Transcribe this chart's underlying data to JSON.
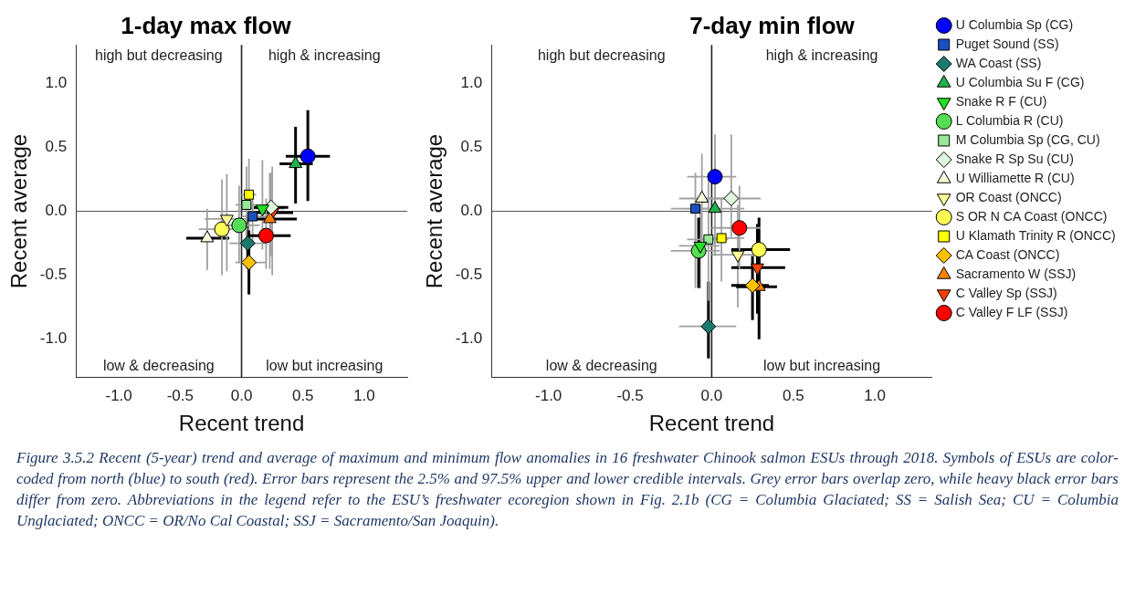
{
  "chart_data": [
    {
      "type": "scatter",
      "title": "1-day max flow",
      "xlabel": "Recent trend",
      "ylabel": "Recent average",
      "xlim": [
        -1.35,
        1.35
      ],
      "ylim": [
        -1.3,
        1.3
      ],
      "xticks": [
        {
          "value": -1,
          "label": "-1.0"
        },
        {
          "value": -0.5,
          "label": "-0.5"
        },
        {
          "value": 0,
          "label": "0.0"
        },
        {
          "value": 0.5,
          "label": "0.5"
        },
        {
          "value": 1,
          "label": "1.0"
        }
      ],
      "yticks": [
        {
          "value": -1,
          "label": "-1.0"
        },
        {
          "value": -0.5,
          "label": "-0.5"
        },
        {
          "value": 0,
          "label": "0.0"
        },
        {
          "value": 0.5,
          "label": "0.5"
        },
        {
          "value": 1,
          "label": "1.0"
        }
      ],
      "grid": false,
      "legend": false,
      "ref_lines": [
        {
          "axis": "x",
          "value": 0
        },
        {
          "axis": "y",
          "value": 0
        }
      ],
      "annotations": [
        "high but decreasing",
        "high & increasing",
        "low & decreasing",
        "low but increasing"
      ],
      "series": [
        {
          "color": "#0000ff",
          "marker": "circle",
          "x": [
            0.54
          ],
          "values": [
            0.43
          ],
          "xerrors": [
            [
              0.36,
              0.72
            ]
          ],
          "errors": [
            [
              0.08,
              0.79
            ]
          ]
        },
        {
          "color": "#1a4fc0",
          "marker": "square",
          "x": [
            0.09
          ],
          "values": [
            -0.04
          ],
          "xerrors": [
            [
              0.0,
              0.2
            ]
          ],
          "errors": [
            [
              -0.25,
              0.15
            ]
          ]
        },
        {
          "color": "#1a7a6e",
          "marker": "diamond",
          "x": [
            0.05
          ],
          "values": [
            -0.25
          ],
          "xerrors": [
            [
              -0.1,
              0.2
            ]
          ],
          "errors": [
            [
              -0.45,
              -0.05
            ]
          ]
        },
        {
          "color": "#22b14c",
          "marker": "triangle",
          "x": [
            0.44
          ],
          "values": [
            0.37
          ],
          "xerrors": [
            [
              0.31,
              0.58
            ]
          ],
          "errors": [
            [
              0.06,
              0.66
            ]
          ]
        },
        {
          "color": "#22e022",
          "marker": "triangle-down",
          "x": [
            0.17
          ],
          "values": [
            0.02
          ],
          "xerrors": [
            [
              0.0,
              0.35
            ]
          ],
          "errors": [
            [
              -0.3,
              0.4
            ]
          ]
        },
        {
          "color": "#55dd55",
          "marker": "circle",
          "x": [
            -0.02
          ],
          "values": [
            -0.11
          ],
          "xerrors": [
            [
              -0.2,
              0.15
            ]
          ],
          "errors": [
            [
              -0.4,
              0.2
            ]
          ]
        },
        {
          "color": "#99e699",
          "marker": "square",
          "x": [
            0.04
          ],
          "values": [
            0.05
          ],
          "xerrors": [
            [
              -0.05,
              0.12
            ]
          ],
          "errors": [
            [
              -0.3,
              0.35
            ]
          ]
        },
        {
          "color": "#ddf5dd",
          "marker": "diamond",
          "x": [
            0.24
          ],
          "values": [
            0.03
          ],
          "xerrors": [
            [
              0.1,
              0.38
            ]
          ],
          "errors": [
            [
              -0.35,
              0.3
            ]
          ]
        },
        {
          "color": "#fafadc",
          "marker": "triangle",
          "x": [
            -0.28
          ],
          "values": [
            -0.21
          ],
          "xerrors": [
            [
              -0.45,
              -0.1
            ]
          ],
          "errors": [
            [
              -0.46,
              0.02
            ]
          ]
        },
        {
          "color": "#ffff99",
          "marker": "triangle-down",
          "x": [
            -0.12
          ],
          "values": [
            -0.06
          ],
          "xerrors": [
            [
              -0.3,
              0.05
            ]
          ],
          "errors": [
            [
              -0.47,
              0.29
            ]
          ]
        },
        {
          "color": "#ffff55",
          "marker": "circle",
          "x": [
            -0.16
          ],
          "values": [
            -0.14
          ],
          "xerrors": [
            [
              -0.35,
              0.05
            ]
          ],
          "errors": [
            [
              -0.5,
              0.25
            ]
          ]
        },
        {
          "color": "#ffff00",
          "marker": "square",
          "x": [
            0.06
          ],
          "values": [
            0.13
          ],
          "xerrors": [
            [
              0.0,
              0.12
            ]
          ],
          "errors": [
            [
              -0.35,
              0.41
            ]
          ]
        },
        {
          "color": "#ffc000",
          "marker": "diamond",
          "x": [
            0.06
          ],
          "values": [
            -0.4
          ],
          "xerrors": [
            [
              -0.05,
              0.2
            ]
          ],
          "errors": [
            [
              -0.65,
              -0.15
            ]
          ]
        },
        {
          "color": "#ff8000",
          "marker": "triangle",
          "x": [
            0.23
          ],
          "values": [
            -0.06
          ],
          "xerrors": [
            [
              0.05,
              0.45
            ]
          ],
          "errors": [
            [
              -0.45,
              0.3
            ]
          ]
        },
        {
          "color": "#ff4000",
          "marker": "triangle-down",
          "x": [
            0.25
          ],
          "values": [
            -0.01
          ],
          "xerrors": [
            [
              0.12,
              0.42
            ]
          ],
          "errors": [
            [
              -0.5,
              0.35
            ]
          ]
        },
        {
          "color": "#ff0000",
          "marker": "circle",
          "x": [
            0.2
          ],
          "values": [
            -0.19
          ],
          "xerrors": [
            [
              0.05,
              0.4
            ]
          ],
          "errors": [
            [
              -0.45,
              0.1
            ]
          ]
        }
      ]
    },
    {
      "type": "scatter",
      "title": "7-day min flow",
      "xlabel": "Recent trend",
      "ylabel": "Recent average",
      "xlim": [
        -1.35,
        1.35
      ],
      "ylim": [
        -1.3,
        1.3
      ],
      "xticks": [
        {
          "value": -1,
          "label": "-1.0"
        },
        {
          "value": -0.5,
          "label": "-0.5"
        },
        {
          "value": 0,
          "label": "0.0"
        },
        {
          "value": 0.5,
          "label": "0.5"
        },
        {
          "value": 1,
          "label": "1.0"
        }
      ],
      "yticks": [
        {
          "value": -1,
          "label": "-1.0"
        },
        {
          "value": -0.5,
          "label": "-0.5"
        },
        {
          "value": 0,
          "label": "0.0"
        },
        {
          "value": 0.5,
          "label": "0.5"
        },
        {
          "value": 1,
          "label": "1.0"
        }
      ],
      "grid": false,
      "legend": "right",
      "ref_lines": [
        {
          "axis": "x",
          "value": 0
        },
        {
          "axis": "y",
          "value": 0
        }
      ],
      "annotations": [
        "high but decreasing",
        "high & increasing",
        "low & decreasing",
        "low but increasing",
        "Figure 3.5.2 Recent (5-year) trend and average of maximum and minimum flow anomalies in 16 freshwater Chinook salmon ESUs through 2018. Symbols of ESUs are color-coded from north (blue) to south (red). Error bars represent the 2.5% and 97.5% upper and lower credible intervals. Grey error bars overlap zero, while heavy black error bars differ from zero. Abbreviations in the legend refer to the ESU’s freshwater ecoregion shown in Fig. 2.1b (CG = Columbia Glaciated; SS = Salish Sea; CU = Columbia Unglaciated; ONCC = OR/No Cal Coastal; SSJ = Sacramento/San Joaquin)."
      ],
      "series": [
        {
          "name": "U Columbia Sp (CG)",
          "color": "#0000ff",
          "marker": "circle",
          "x": [
            0.02
          ],
          "values": [
            0.27
          ],
          "xerrors": [
            [
              -0.15,
              0.15
            ]
          ],
          "errors": [
            [
              0.0,
              0.6
            ]
          ]
        },
        {
          "name": "Puget Sound (SS)",
          "color": "#1a4fc0",
          "marker": "square",
          "x": [
            -0.1
          ],
          "values": [
            0.02
          ],
          "xerrors": [
            [
              -0.25,
              0.05
            ]
          ],
          "errors": [
            [
              -0.6,
              0.3
            ]
          ]
        },
        {
          "name": "WA Coast (SS)",
          "color": "#1a7a6e",
          "marker": "diamond",
          "x": [
            -0.02
          ],
          "values": [
            -0.9
          ],
          "xerrors": [
            [
              -0.2,
              0.15
            ]
          ],
          "errors": [
            [
              -1.15,
              -0.55
            ]
          ]
        },
        {
          "name": "U Columbia Su F (CG)",
          "color": "#22b14c",
          "marker": "triangle",
          "x": [
            0.02
          ],
          "values": [
            0.02
          ],
          "xerrors": [
            [
              -0.15,
              0.2
            ]
          ],
          "errors": [
            [
              -0.35,
              0.4
            ]
          ]
        },
        {
          "name": "Snake R F (CU)",
          "color": "#22e022",
          "marker": "triangle-down",
          "x": [
            -0.07
          ],
          "values": [
            -0.27
          ],
          "xerrors": [
            [
              -0.2,
              0.05
            ]
          ],
          "errors": [
            [
              -0.6,
              0.05
            ]
          ]
        },
        {
          "name": "L Columbia R (CU)",
          "color": "#55dd55",
          "marker": "circle",
          "x": [
            -0.08
          ],
          "values": [
            -0.31
          ],
          "xerrors": [
            [
              -0.25,
              0.05
            ]
          ],
          "errors": [
            [
              -0.6,
              -0.05
            ]
          ]
        },
        {
          "name": "M Columbia Sp (CG, CU)",
          "color": "#99e699",
          "marker": "square",
          "x": [
            -0.02
          ],
          "values": [
            -0.22
          ],
          "xerrors": [
            [
              -0.15,
              0.1
            ]
          ],
          "errors": [
            [
              -0.7,
              0.3
            ]
          ]
        },
        {
          "name": "Snake R Sp Su (CU)",
          "color": "#ddf5dd",
          "marker": "diamond",
          "x": [
            0.12
          ],
          "values": [
            0.1
          ],
          "xerrors": [
            [
              -0.05,
              0.3
            ]
          ],
          "errors": [
            [
              -0.2,
              0.6
            ]
          ]
        },
        {
          "name": "U Williamette R (CU)",
          "color": "#fafadc",
          "marker": "triangle",
          "x": [
            -0.06
          ],
          "values": [
            0.1
          ],
          "xerrors": [
            [
              -0.2,
              0.1
            ]
          ],
          "errors": [
            [
              -0.25,
              0.45
            ]
          ]
        },
        {
          "name": "OR Coast (ONCC)",
          "color": "#ffff99",
          "marker": "triangle-down",
          "x": [
            0.16
          ],
          "values": [
            -0.34
          ],
          "xerrors": [
            [
              0.0,
              0.3
            ]
          ],
          "errors": [
            [
              -0.75,
              0.05
            ]
          ]
        },
        {
          "name": "S OR N CA Coast (ONCC)",
          "color": "#ffff55",
          "marker": "circle",
          "x": [
            0.29
          ],
          "values": [
            -0.3
          ],
          "xerrors": [
            [
              0.12,
              0.48
            ]
          ],
          "errors": [
            [
              -0.55,
              -0.05
            ]
          ]
        },
        {
          "name": "U Klamath Trinity R (ONCC)",
          "color": "#ffff00",
          "marker": "square",
          "x": [
            0.06
          ],
          "values": [
            -0.21
          ],
          "xerrors": [
            [
              -0.05,
              0.2
            ]
          ],
          "errors": [
            [
              -0.55,
              0.1
            ]
          ]
        },
        {
          "name": "CA Coast (ONCC)",
          "color": "#ffc000",
          "marker": "diamond",
          "x": [
            0.25
          ],
          "values": [
            -0.58
          ],
          "xerrors": [
            [
              0.12,
              0.35
            ]
          ],
          "errors": [
            [
              -0.85,
              -0.35
            ]
          ]
        },
        {
          "name": "Sacramento W (SSJ)",
          "color": "#ff8000",
          "marker": "triangle",
          "x": [
            0.29
          ],
          "values": [
            -0.59
          ],
          "xerrors": [
            [
              0.15,
              0.4
            ]
          ],
          "errors": [
            [
              -1.0,
              -0.25
            ]
          ]
        },
        {
          "name": "C Valley Sp (SSJ)",
          "color": "#ff4000",
          "marker": "triangle-down",
          "x": [
            0.28
          ],
          "values": [
            -0.44
          ],
          "xerrors": [
            [
              0.12,
              0.45
            ]
          ],
          "errors": [
            [
              -0.8,
              -0.1
            ]
          ]
        },
        {
          "name": "C Valley F LF (SSJ)",
          "color": "#ff0000",
          "marker": "circle",
          "x": [
            0.17
          ],
          "values": [
            -0.13
          ],
          "xerrors": [
            [
              0.0,
              0.3
            ]
          ],
          "errors": [
            [
              -0.45,
              0.2
            ]
          ]
        }
      ]
    }
  ]
}
